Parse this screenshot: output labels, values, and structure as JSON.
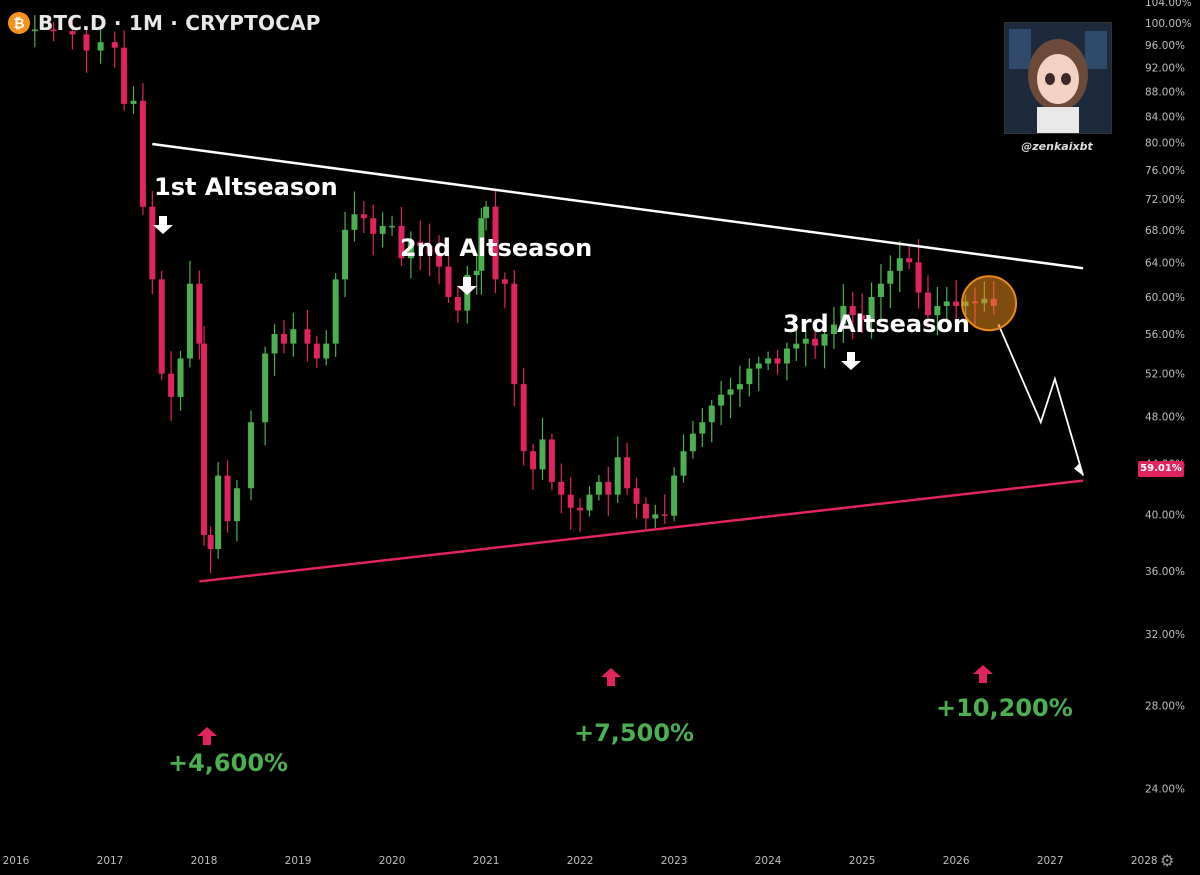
{
  "header": {
    "symbol": "BTC.D · 1M · CRYPTOCAP",
    "logo_glyph": "₿"
  },
  "watermark": {
    "handle": "@zenkaixbt"
  },
  "annotations": {
    "first": "1st Altseason",
    "second": "2nd Altseason",
    "third": "3rd Altseason",
    "gain1": "+4,600%",
    "gain2": "+7,500%",
    "gain3": "+10,200%"
  },
  "price_badge": "59.01%",
  "settings_icon": "⚙",
  "colors": {
    "up": "#4caf50",
    "down": "#e0245e",
    "resistance": "#ffffff",
    "support": "#e0245e",
    "highlight": "#e88b1a"
  },
  "chart_data": {
    "type": "candlestick",
    "title": "BTC.D · 1M · CRYPTOCAP",
    "xlim": [
      2016.0,
      2028.2
    ],
    "ylim": [
      22.0,
      104.0
    ],
    "y_scale": "log",
    "y_ticks": [
      "104.00%",
      "100.00%",
      "96.00%",
      "92.00%",
      "88.00%",
      "84.00%",
      "80.00%",
      "76.00%",
      "72.00%",
      "68.00%",
      "64.00%",
      "60.00%",
      "56.00%",
      "52.00%",
      "48.00%",
      "44.00%",
      "40.00%",
      "36.00%",
      "32.00%",
      "28.00%",
      "24.00%"
    ],
    "x_ticks": [
      "2016",
      "2017",
      "2018",
      "2019",
      "2020",
      "2021",
      "2022",
      "2023",
      "2024",
      "2025",
      "2026",
      "2027",
      "2028"
    ],
    "last_value": 59.01,
    "resistance_line": [
      [
        2017.45,
        79.8
      ],
      [
        2027.35,
        63.3
      ]
    ],
    "support_line": [
      [
        2017.95,
        35.3
      ],
      [
        2027.35,
        42.6
      ]
    ],
    "projection_path": [
      [
        2026.45,
        57.0
      ],
      [
        2026.9,
        47.5
      ],
      [
        2027.05,
        51.5
      ],
      [
        2027.35,
        43.0
      ]
    ],
    "highlight_circle": {
      "x": 2026.35,
      "y": 59.3
    },
    "path": [
      [
        2016.0,
        98.5
      ],
      [
        2016.2,
        98.8
      ],
      [
        2016.4,
        98.5
      ],
      [
        2016.6,
        97.9
      ],
      [
        2016.75,
        95.0
      ],
      [
        2016.9,
        96.5
      ],
      [
        2017.05,
        95.5
      ],
      [
        2017.15,
        86.0
      ],
      [
        2017.25,
        86.5
      ],
      [
        2017.35,
        71.0
      ],
      [
        2017.45,
        62.0
      ],
      [
        2017.55,
        52.0
      ],
      [
        2017.65,
        49.8
      ],
      [
        2017.75,
        53.5
      ],
      [
        2017.85,
        61.5
      ],
      [
        2017.95,
        55.0
      ],
      [
        2018.0,
        38.5
      ],
      [
        2018.07,
        37.5
      ],
      [
        2018.15,
        43.0
      ],
      [
        2018.25,
        39.5
      ],
      [
        2018.35,
        42.0
      ],
      [
        2018.5,
        47.5
      ],
      [
        2018.65,
        54.0
      ],
      [
        2018.75,
        56.0
      ],
      [
        2018.85,
        55.0
      ],
      [
        2018.95,
        56.5
      ],
      [
        2019.1,
        55.0
      ],
      [
        2019.2,
        53.5
      ],
      [
        2019.3,
        55.0
      ],
      [
        2019.4,
        62.0
      ],
      [
        2019.5,
        68.0
      ],
      [
        2019.6,
        70.0
      ],
      [
        2019.7,
        69.5
      ],
      [
        2019.8,
        67.5
      ],
      [
        2019.9,
        68.5
      ],
      [
        2020.0,
        68.5
      ],
      [
        2020.1,
        64.5
      ],
      [
        2020.2,
        66.5
      ],
      [
        2020.3,
        66.0
      ],
      [
        2020.4,
        65.0
      ],
      [
        2020.5,
        63.5
      ],
      [
        2020.6,
        60.0
      ],
      [
        2020.7,
        58.5
      ],
      [
        2020.8,
        62.5
      ],
      [
        2020.9,
        63.0
      ],
      [
        2020.95,
        69.5
      ],
      [
        2021.0,
        71.0
      ],
      [
        2021.1,
        62.0
      ],
      [
        2021.2,
        61.5
      ],
      [
        2021.3,
        51.0
      ],
      [
        2021.4,
        45.0
      ],
      [
        2021.5,
        43.5
      ],
      [
        2021.6,
        46.0
      ],
      [
        2021.7,
        42.5
      ],
      [
        2021.8,
        41.5
      ],
      [
        2021.9,
        40.5
      ],
      [
        2022.0,
        40.3
      ],
      [
        2022.1,
        41.5
      ],
      [
        2022.2,
        42.5
      ],
      [
        2022.3,
        41.5
      ],
      [
        2022.4,
        44.5
      ],
      [
        2022.5,
        42.0
      ],
      [
        2022.6,
        40.8
      ],
      [
        2022.7,
        39.7
      ],
      [
        2022.8,
        40.0
      ],
      [
        2022.9,
        39.9
      ],
      [
        2023.0,
        43.0
      ],
      [
        2023.1,
        45.0
      ],
      [
        2023.2,
        46.5
      ],
      [
        2023.3,
        47.5
      ],
      [
        2023.4,
        49.0
      ],
      [
        2023.5,
        50.0
      ],
      [
        2023.6,
        50.5
      ],
      [
        2023.7,
        51.0
      ],
      [
        2023.8,
        52.5
      ],
      [
        2023.9,
        53.0
      ],
      [
        2024.0,
        53.5
      ],
      [
        2024.1,
        53.0
      ],
      [
        2024.2,
        54.5
      ],
      [
        2024.3,
        55.0
      ],
      [
        2024.4,
        55.5
      ],
      [
        2024.5,
        54.8
      ],
      [
        2024.6,
        56.0
      ],
      [
        2024.7,
        57.0
      ],
      [
        2024.8,
        59.0
      ],
      [
        2024.9,
        58.0
      ],
      [
        2025.0,
        57.5
      ],
      [
        2025.1,
        60.0
      ],
      [
        2025.2,
        61.5
      ],
      [
        2025.3,
        63.0
      ],
      [
        2025.4,
        64.5
      ],
      [
        2025.5,
        64.0
      ],
      [
        2025.6,
        60.5
      ],
      [
        2025.7,
        58.0
      ],
      [
        2025.8,
        59.0
      ],
      [
        2025.9,
        59.5
      ],
      [
        2026.0,
        59.0
      ],
      [
        2026.1,
        59.5
      ],
      [
        2026.2,
        59.3
      ],
      [
        2026.3,
        59.8
      ],
      [
        2026.4,
        59.01
      ]
    ]
  }
}
